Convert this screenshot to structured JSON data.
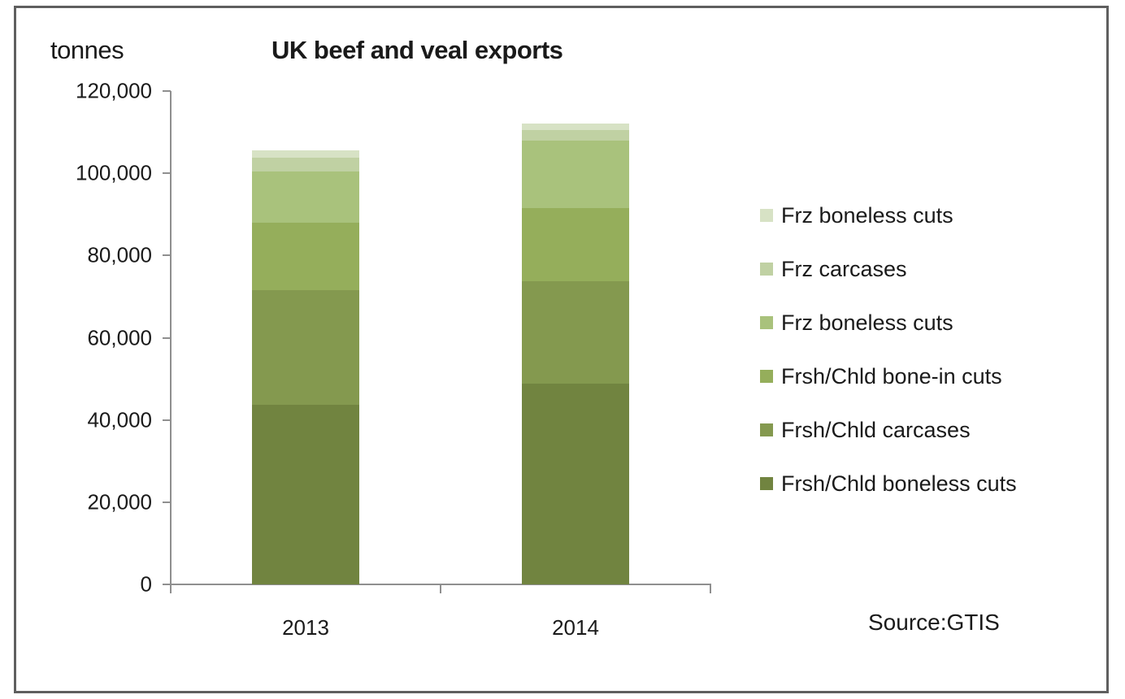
{
  "chart": {
    "title": "UK beef and veal exports",
    "ylabel": "tonnes",
    "source": "Source:GTIS",
    "yticks": [
      "0",
      "20,000",
      "40,000",
      "60,000",
      "80,000",
      "100,000",
      "120,000"
    ],
    "xticks": [
      "2013",
      "2014"
    ],
    "legend": [
      "Frz boneless cuts",
      "Frz carcases",
      "Frz boneless cuts",
      "Frsh/Chld bone-in cuts",
      "Frsh/Chld carcases",
      "Frsh/Chld boneless cuts"
    ]
  },
  "chart_data": {
    "type": "bar",
    "stacked": true,
    "title": "UK beef and veal exports",
    "xlabel": "",
    "ylabel": "tonnes",
    "ylim": [
      0,
      120000
    ],
    "yticks": [
      0,
      20000,
      40000,
      60000,
      80000,
      100000,
      120000
    ],
    "grid": false,
    "legend_position": "right",
    "categories": [
      "2013",
      "2014"
    ],
    "series": [
      {
        "name": "Frsh/Chld boneless cuts",
        "color": "#718440",
        "values": [
          43700,
          48800
        ]
      },
      {
        "name": "Frsh/Chld carcases",
        "color": "#84994f",
        "values": [
          27900,
          24900
        ]
      },
      {
        "name": "Frsh/Chld bone-in cuts",
        "color": "#95ae5b",
        "values": [
          16400,
          17800
        ]
      },
      {
        "name": "Frz boneless cuts",
        "color": "#a9c27c",
        "values": [
          12400,
          16400
        ]
      },
      {
        "name": "Frz carcases",
        "color": "#c0d1a3",
        "values": [
          3400,
          2700
        ]
      },
      {
        "name": "Frz boneless cuts",
        "color": "#d7e2c5",
        "values": [
          1800,
          1400
        ]
      }
    ],
    "totals": [
      105600,
      112000
    ],
    "annotations": [
      "Source:GTIS"
    ]
  }
}
